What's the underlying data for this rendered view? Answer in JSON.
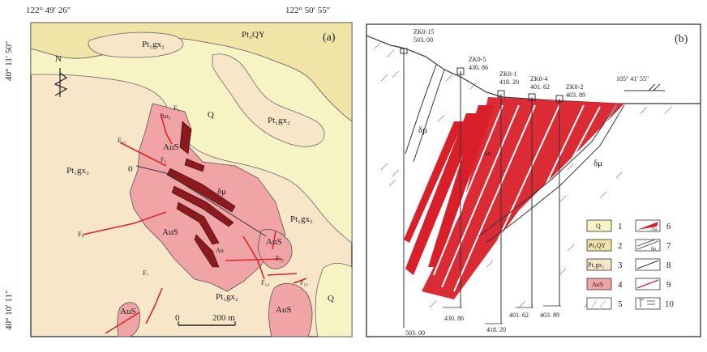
{
  "colors": {
    "quaternary": "#f7f3c4",
    "qingbaikou": "#f0e5a6",
    "gaixian": "#f7e6c8",
    "aus": "#f1a4a6",
    "orebody": "#d9202a",
    "fault": "#e0242c",
    "rock": "#444444"
  },
  "panel_a": {
    "panel_label": "(a)",
    "coord_top_left": "122° 49′ 26″",
    "coord_top_right": "122° 50′ 55″",
    "coord_left_top": "40° 11′ 50″",
    "coord_left_bottom": "40° 10′ 11″",
    "north_arrow": "N",
    "scale_zero": "0",
    "scale_end": "200 m",
    "unit_labels": {
      "pt_qy_top": "Pt₃QY",
      "pt_gx_top": "Pt₁gx₂",
      "pt_gx_right_upper": "Pt₁gx₂",
      "pt_gx_left": "Pt₁gx₂",
      "pt_gx_right": "Pt₁gx₂",
      "pt_gx_bottom": "Pt₁gx₂",
      "q_center": "Q",
      "q_right": "Q",
      "aus_center": "AuS",
      "aus_center_lower": "AuS",
      "aus_right": "AuS",
      "aus_bottom_left": "AuS",
      "aus_bottom_right": "AuS",
      "au_label": "Au",
      "du_label": "δμ",
      "zero_line": "0"
    },
    "fault_labels": [
      "F₁",
      "F₁₀",
      "F₃",
      "F₆",
      "F₇",
      "F₁₂",
      "F₁₄",
      "F₁₅",
      "Au₅"
    ]
  },
  "panel_b": {
    "panel_label": "(b)",
    "coord": "105° 41′ 55″",
    "du_upper": "δμ",
    "du_lower": "δμ",
    "au_label": "Au",
    "drillholes": [
      {
        "name": "ZK0-15",
        "top": "503. 00",
        "bottom": "503. 00"
      },
      {
        "name": "ZK0-5",
        "top": "430. 86",
        "bottom": "430. 86"
      },
      {
        "name": "ZK0-1",
        "top": "418. 20",
        "bottom": "418. 20"
      },
      {
        "name": "ZK0-4",
        "top": "401. 62",
        "bottom": "401. 62"
      },
      {
        "name": "ZK0-2",
        "top": "403. 89",
        "bottom": "403. 89"
      }
    ],
    "legend": {
      "items": [
        {
          "num": "1",
          "label": "Q"
        },
        {
          "num": "2",
          "label": "Pt₃QY"
        },
        {
          "num": "3",
          "label": "Pt₁gx₂"
        },
        {
          "num": "4",
          "label": "AuS"
        },
        {
          "num": "5",
          "label": ""
        },
        {
          "num": "6",
          "label": "Au"
        },
        {
          "num": "7",
          "label": "δμ"
        },
        {
          "num": "8",
          "label": ""
        },
        {
          "num": "9",
          "label": ""
        },
        {
          "num": "10",
          "label": ""
        }
      ]
    }
  }
}
